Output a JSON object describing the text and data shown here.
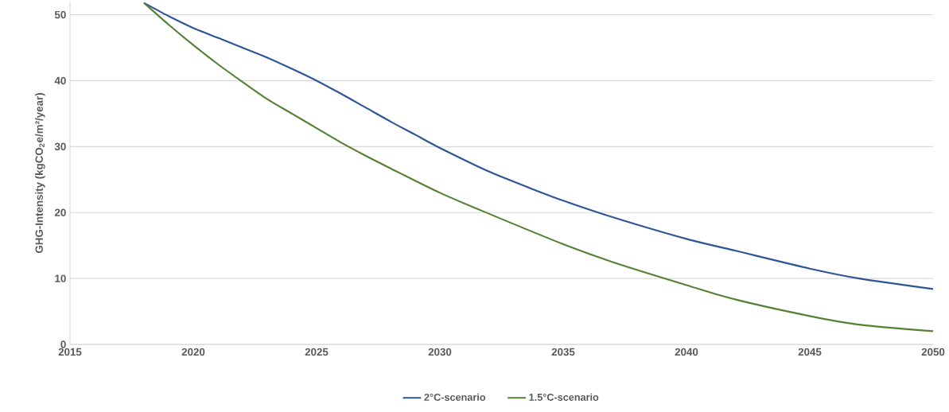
{
  "chart_data": {
    "type": "line",
    "ylabel": "GHG-Intensity (kgCO$_{2}$e/m²/year)",
    "xlim": [
      2015,
      2050
    ],
    "xticks": [
      2015,
      2020,
      2025,
      2030,
      2035,
      2040,
      2045,
      2050
    ],
    "ylim": [
      0,
      52
    ],
    "yticks": [
      0,
      10,
      20,
      30,
      40,
      50
    ],
    "grid": "y",
    "legend": "bottom",
    "marker": "none",
    "line_style": "solid",
    "series": [
      {
        "name": "2°C-scenario",
        "color": "#2f5597",
        "x": [
          2018,
          2019,
          2020,
          2021,
          2022,
          2023,
          2024,
          2025,
          2026,
          2027,
          2028,
          2029,
          2030,
          2032,
          2034,
          2035,
          2037,
          2040,
          2042,
          2045,
          2047,
          2050
        ],
        "values": [
          51.8,
          49.8,
          48.0,
          46.5,
          45.0,
          43.5,
          41.8,
          40.0,
          38.0,
          35.9,
          33.8,
          31.8,
          29.8,
          26.2,
          23.2,
          21.8,
          19.3,
          16.0,
          14.2,
          11.5,
          10.0,
          8.4
        ]
      },
      {
        "name": "1.5°C-scenario",
        "color": "#548235",
        "x": [
          2018,
          2019,
          2020,
          2021,
          2022,
          2023,
          2024,
          2025,
          2026,
          2027,
          2028,
          2030,
          2032,
          2035,
          2037,
          2040,
          2042,
          2045,
          2047,
          2050
        ],
        "values": [
          51.8,
          48.5,
          45.4,
          42.5,
          39.8,
          37.2,
          35.0,
          32.8,
          30.6,
          28.6,
          26.7,
          23.0,
          19.8,
          15.2,
          12.5,
          9.0,
          6.8,
          4.3,
          3.0,
          2.0
        ]
      }
    ]
  }
}
